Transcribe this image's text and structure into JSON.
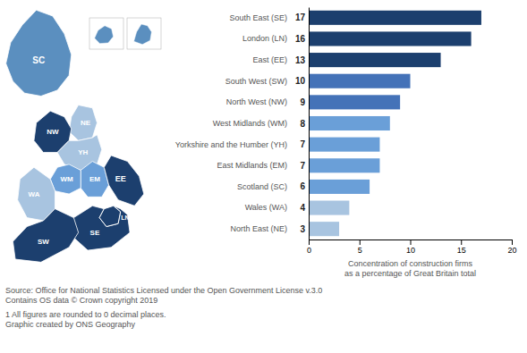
{
  "chart_data": [
    {
      "type": "bar",
      "orientation": "horizontal",
      "categories": [
        "South East (SE)",
        "London (LN)",
        "East (EE)",
        "South West (SW)",
        "North West (NW)",
        "West Midlands (WM)",
        "Yorkshire and the Humber (YH)",
        "East Midlands (EM)",
        "Scotland (SC)",
        "Wales (WA)",
        "North East (NE)"
      ],
      "values": [
        17,
        16,
        13,
        10,
        9,
        8,
        7,
        7,
        6,
        4,
        3
      ],
      "colors": [
        "#1c3f6e",
        "#1c3f6e",
        "#1c3f6e",
        "#4472b8",
        "#4472b8",
        "#6a9fd8",
        "#6a9fd8",
        "#6a9fd8",
        "#6a9fd8",
        "#a8c4e0",
        "#a8c4e0"
      ],
      "xlabel": "Concentration of construction firms\nas a percentage of Great Britain total",
      "xlim": [
        0,
        20
      ],
      "xticks": [
        0,
        5,
        10,
        15,
        20
      ],
      "grid": false,
      "data_labels": true,
      "annotations": [
        "Source: Office for National Statistics Licensed under the Open Government License v.3.0\nContains OS data © Crown copyright 2019",
        "1  All figures are rounded to 0 decimal places.\nGraphic created by ONS Geography"
      ]
    },
    {
      "type": "map",
      "categories": [
        "SC",
        "NE",
        "NW",
        "YH",
        "EM",
        "WM",
        "WA",
        "EE",
        "LN",
        "SE",
        "SW"
      ],
      "colors": [
        "#5b8fbf",
        "#a8c4e0",
        "#1c3f6e",
        "#a8c4e0",
        "#6a9fd8",
        "#6a9fd8",
        "#a8c4e0",
        "#1c3f6e",
        "#1c3f6e",
        "#1c3f6e",
        "#1c3f6e"
      ]
    }
  ]
}
